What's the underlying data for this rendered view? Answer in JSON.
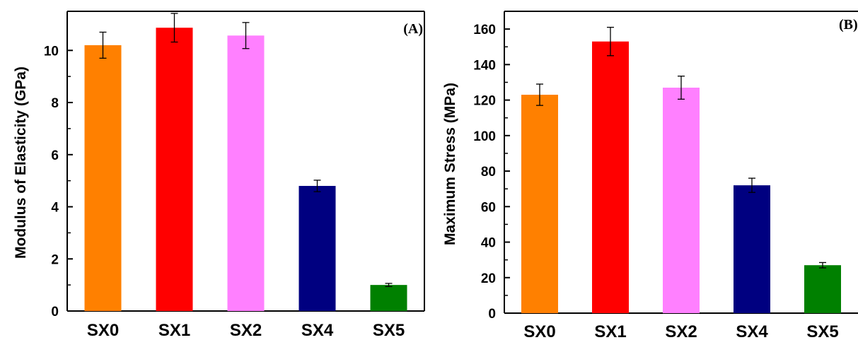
{
  "chart_data": [
    {
      "type": "bar",
      "panel_label": "(A)",
      "categories": [
        "SX0",
        "SX1",
        "SX2",
        "SX4",
        "SX5"
      ],
      "values": [
        10.2,
        10.87,
        10.57,
        4.8,
        1.0
      ],
      "errors": [
        0.5,
        0.55,
        0.5,
        0.22,
        0.06
      ],
      "colors": [
        "#ff8000",
        "#ff0000",
        "#ff80ff",
        "#000080",
        "#008000"
      ],
      "title": "",
      "xlabel": "",
      "ylabel": "Modulus of Elasticity (GPa)",
      "ylim": [
        0,
        11.5
      ],
      "yticks": [
        0,
        2,
        4,
        6,
        8,
        10
      ],
      "grid": false
    },
    {
      "type": "bar",
      "panel_label": "(B)",
      "categories": [
        "SX0",
        "SX1",
        "SX2",
        "SX4",
        "SX5"
      ],
      "values": [
        123,
        153,
        127,
        72,
        27
      ],
      "errors": [
        6,
        8,
        6.5,
        4,
        1.5
      ],
      "colors": [
        "#ff8000",
        "#ff0000",
        "#ff80ff",
        "#000080",
        "#008000"
      ],
      "title": "",
      "xlabel": "",
      "ylabel": "Maximum Stress (MPa)",
      "ylim": [
        0,
        170
      ],
      "yticks": [
        0,
        20,
        40,
        60,
        80,
        100,
        120,
        140,
        160
      ],
      "grid": false
    }
  ]
}
